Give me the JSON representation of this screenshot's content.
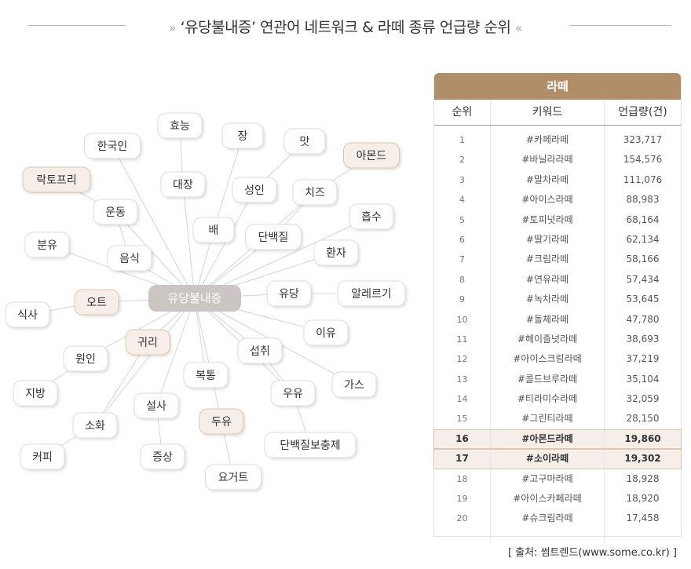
{
  "title": "‘유당불내증’ 연관어 네트워크  &  라떼 종류 언급량 순위",
  "network": {
    "center": "유당불내증",
    "nodes": [
      {
        "label": "효능",
        "highlight": false
      },
      {
        "label": "한국인",
        "highlight": false
      },
      {
        "label": "장",
        "highlight": false
      },
      {
        "label": "맛",
        "highlight": false
      },
      {
        "label": "아몬드",
        "highlight": true
      },
      {
        "label": "락토프리",
        "highlight": true
      },
      {
        "label": "대장",
        "highlight": false
      },
      {
        "label": "성인",
        "highlight": false
      },
      {
        "label": "치즈",
        "highlight": false
      },
      {
        "label": "운동",
        "highlight": false
      },
      {
        "label": "흡수",
        "highlight": false
      },
      {
        "label": "배",
        "highlight": false
      },
      {
        "label": "단백질",
        "highlight": false
      },
      {
        "label": "분유",
        "highlight": false
      },
      {
        "label": "음식",
        "highlight": false
      },
      {
        "label": "환자",
        "highlight": false
      },
      {
        "label": "유당",
        "highlight": false
      },
      {
        "label": "알레르기",
        "highlight": false
      },
      {
        "label": "오트",
        "highlight": true
      },
      {
        "label": "식사",
        "highlight": false
      },
      {
        "label": "이유",
        "highlight": false
      },
      {
        "label": "귀리",
        "highlight": true
      },
      {
        "label": "섭취",
        "highlight": false
      },
      {
        "label": "원인",
        "highlight": false
      },
      {
        "label": "복통",
        "highlight": false
      },
      {
        "label": "가스",
        "highlight": false
      },
      {
        "label": "지방",
        "highlight": false
      },
      {
        "label": "우유",
        "highlight": false
      },
      {
        "label": "설사",
        "highlight": false
      },
      {
        "label": "두유",
        "highlight": true
      },
      {
        "label": "소화",
        "highlight": false
      },
      {
        "label": "단백질보충제",
        "highlight": false
      },
      {
        "label": "커피",
        "highlight": false
      },
      {
        "label": "증상",
        "highlight": false
      },
      {
        "label": "요거트",
        "highlight": false
      }
    ],
    "edges": [
      [
        "유당불내증",
        "한국인"
      ],
      [
        "유당불내증",
        "대장"
      ],
      [
        "대장",
        "효능"
      ],
      [
        "유당불내증",
        "배"
      ],
      [
        "배",
        "장"
      ],
      [
        "유당불내증",
        "성인"
      ],
      [
        "성인",
        "맛"
      ],
      [
        "유당불내증",
        "단백질"
      ],
      [
        "단백질",
        "치즈"
      ],
      [
        "치즈",
        "아몬드"
      ],
      [
        "유당불내증",
        "치즈"
      ],
      [
        "유당불내증",
        "음식"
      ],
      [
        "음식",
        "운동"
      ],
      [
        "운동",
        "락토프리"
      ],
      [
        "유당불내증",
        "운동"
      ],
      [
        "유당불내증",
        "분유"
      ],
      [
        "유당불내증",
        "흡수"
      ],
      [
        "유당불내증",
        "환자"
      ],
      [
        "유당불내증",
        "유당"
      ],
      [
        "유당",
        "알레르기"
      ],
      [
        "유당불내증",
        "오트"
      ],
      [
        "오트",
        "식사"
      ],
      [
        "유당불내증",
        "이유"
      ],
      [
        "유당불내증",
        "가스"
      ],
      [
        "유당불내증",
        "원인"
      ],
      [
        "원인",
        "지방"
      ],
      [
        "유당불내증",
        "귀리"
      ],
      [
        "귀리",
        "소화"
      ],
      [
        "유당불내증",
        "소화"
      ],
      [
        "소화",
        "커피"
      ],
      [
        "유당불내증",
        "설사"
      ],
      [
        "설사",
        "증상"
      ],
      [
        "유당불내증",
        "복통"
      ],
      [
        "유당불내증",
        "두유"
      ],
      [
        "두유",
        "요거트"
      ],
      [
        "유당불내증",
        "섭취"
      ],
      [
        "섭취",
        "우유"
      ],
      [
        "유당불내증",
        "우유"
      ],
      [
        "우유",
        "단백질보충제"
      ]
    ]
  },
  "table": {
    "title": "라떼",
    "columns": [
      "순위",
      "키워드",
      "언급량(건)"
    ],
    "rows": [
      {
        "rank": "1",
        "keyword": "#카페라떼",
        "count": "323,717",
        "highlight": false
      },
      {
        "rank": "2",
        "keyword": "#바닐라라떼",
        "count": "154,576",
        "highlight": false
      },
      {
        "rank": "3",
        "keyword": "#말차라떼",
        "count": "111,076",
        "highlight": false
      },
      {
        "rank": "4",
        "keyword": "#아이스라떼",
        "count": "88,983",
        "highlight": false
      },
      {
        "rank": "5",
        "keyword": "#토피넛라떼",
        "count": "68,164",
        "highlight": false
      },
      {
        "rank": "6",
        "keyword": "#딸기라떼",
        "count": "62,134",
        "highlight": false
      },
      {
        "rank": "7",
        "keyword": "#크림라떼",
        "count": "58,166",
        "highlight": false
      },
      {
        "rank": "8",
        "keyword": "#연유라떼",
        "count": "57,434",
        "highlight": false
      },
      {
        "rank": "9",
        "keyword": "#녹차라떼",
        "count": "53,645",
        "highlight": false
      },
      {
        "rank": "10",
        "keyword": "#돌체라떼",
        "count": "47,780",
        "highlight": false
      },
      {
        "rank": "11",
        "keyword": "#헤이즐넛라떼",
        "count": "38,693",
        "highlight": false
      },
      {
        "rank": "12",
        "keyword": "#아이스크림라떼",
        "count": "37,219",
        "highlight": false
      },
      {
        "rank": "13",
        "keyword": "#콜드브루라떼",
        "count": "35,104",
        "highlight": false
      },
      {
        "rank": "14",
        "keyword": "#티라미수라떼",
        "count": "32,059",
        "highlight": false
      },
      {
        "rank": "15",
        "keyword": "#그린티라떼",
        "count": "28,150",
        "highlight": false
      },
      {
        "rank": "16",
        "keyword": "#아몬드라떼",
        "count": "19,860",
        "highlight": true
      },
      {
        "rank": "17",
        "keyword": "#소이라떼",
        "count": "19,302",
        "highlight": true
      },
      {
        "rank": "18",
        "keyword": "#고구마라떼",
        "count": "18,928",
        "highlight": false
      },
      {
        "rank": "19",
        "keyword": "#아이스카페라떼",
        "count": "18,920",
        "highlight": false
      },
      {
        "rank": "20",
        "keyword": "#슈크림라떼",
        "count": "17,458",
        "highlight": false
      }
    ]
  },
  "source": "[ 출처: 썸트렌드(www.some.co.kr) ]",
  "colors": {
    "accent": "#b08e68",
    "highlight_fill": "#f6efe9",
    "highlight_border": "#e3c3a6",
    "center_node": "#cbc6c3"
  }
}
